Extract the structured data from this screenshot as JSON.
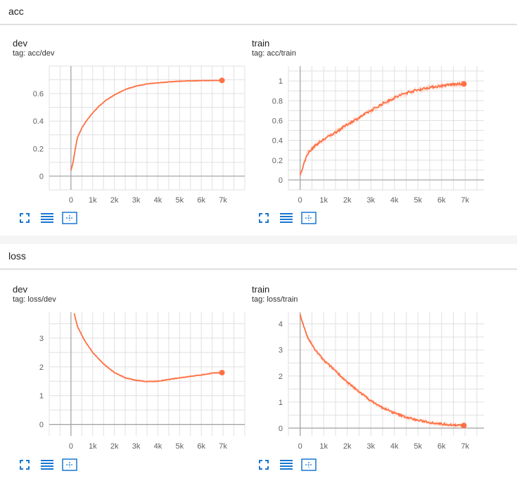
{
  "sections": [
    {
      "title": "acc"
    },
    {
      "title": "loss"
    }
  ],
  "colors": {
    "series": "#ff7043",
    "grid": "#e0e0e0",
    "axis": "#a0a0a0",
    "icon": "#1976d2"
  },
  "toolbar_icons": [
    "fullscreen-icon",
    "data-table-icon",
    "fit-domain-icon"
  ],
  "chart_data": [
    {
      "type": "line",
      "title": "dev",
      "subtitle": "tag: acc/dev",
      "xlim": [
        -1000,
        8000
      ],
      "ylim": [
        -0.1,
        0.8
      ],
      "xticks": [
        0,
        1000,
        2000,
        3000,
        4000,
        5000,
        6000,
        7000
      ],
      "xtick_labels": [
        "0",
        "1k",
        "2k",
        "3k",
        "4k",
        "5k",
        "6k",
        "7k"
      ],
      "yticks": [
        0,
        0.2,
        0.4,
        0.6
      ],
      "ytick_labels": [
        "0",
        "0.2",
        "0.4",
        "0.6"
      ],
      "noise": 0.004,
      "series": [
        {
          "x": [
            0,
            100,
            200,
            300,
            500,
            700,
            1000,
            1300,
            1600,
            2000,
            2500,
            3000,
            3500,
            4000,
            4500,
            5000,
            5500,
            6000,
            6500,
            6950
          ],
          "y": [
            0.04,
            0.1,
            0.2,
            0.28,
            0.35,
            0.4,
            0.46,
            0.51,
            0.55,
            0.59,
            0.63,
            0.655,
            0.67,
            0.678,
            0.685,
            0.69,
            0.693,
            0.694,
            0.695,
            0.696
          ]
        }
      ]
    },
    {
      "type": "line",
      "title": "train",
      "subtitle": "tag: acc/train",
      "xlim": [
        -500,
        7800
      ],
      "ylim": [
        -0.1,
        1.15
      ],
      "xticks": [
        0,
        1000,
        2000,
        3000,
        4000,
        5000,
        6000,
        7000
      ],
      "xtick_labels": [
        "0",
        "1k",
        "2k",
        "3k",
        "4k",
        "5k",
        "6k",
        "7k"
      ],
      "yticks": [
        0,
        0.2,
        0.4,
        0.6,
        0.8,
        1
      ],
      "ytick_labels": [
        "0",
        "0.2",
        "0.4",
        "0.6",
        "0.8",
        "1"
      ],
      "noise": 0.03,
      "series": [
        {
          "x": [
            0,
            300,
            600,
            1000,
            1500,
            2000,
            2500,
            3000,
            3500,
            4000,
            4500,
            5000,
            5500,
            6000,
            6500,
            6950
          ],
          "y": [
            0.05,
            0.26,
            0.34,
            0.41,
            0.48,
            0.56,
            0.63,
            0.7,
            0.77,
            0.83,
            0.88,
            0.91,
            0.935,
            0.95,
            0.965,
            0.97
          ]
        }
      ]
    },
    {
      "type": "line",
      "title": "dev",
      "subtitle": "tag: loss/dev",
      "xlim": [
        -1000,
        8000
      ],
      "ylim": [
        -0.4,
        3.9
      ],
      "xticks": [
        0,
        1000,
        2000,
        3000,
        4000,
        5000,
        6000,
        7000
      ],
      "xtick_labels": [
        "0",
        "1k",
        "2k",
        "3k",
        "4k",
        "5k",
        "6k",
        "7k"
      ],
      "yticks": [
        0,
        1,
        2,
        3
      ],
      "ytick_labels": [
        "0",
        "1",
        "2",
        "3"
      ],
      "noise": 0.025,
      "series": [
        {
          "x": [
            150,
            300,
            600,
            1000,
            1500,
            2000,
            2500,
            3000,
            3500,
            4000,
            4500,
            5000,
            5500,
            6000,
            6500,
            6950
          ],
          "y": [
            3.85,
            3.4,
            2.95,
            2.5,
            2.1,
            1.8,
            1.62,
            1.53,
            1.49,
            1.5,
            1.56,
            1.62,
            1.67,
            1.72,
            1.78,
            1.8
          ]
        }
      ]
    },
    {
      "type": "line",
      "title": "train",
      "subtitle": "tag: loss/train",
      "xlim": [
        -500,
        7800
      ],
      "ylim": [
        -0.3,
        4.45
      ],
      "xticks": [
        0,
        1000,
        2000,
        3000,
        4000,
        5000,
        6000,
        7000
      ],
      "xtick_labels": [
        "0",
        "1k",
        "2k",
        "3k",
        "4k",
        "5k",
        "6k",
        "7k"
      ],
      "yticks": [
        0,
        1,
        2,
        3,
        4
      ],
      "ytick_labels": [
        "0",
        "1",
        "2",
        "3",
        "4"
      ],
      "noise": 0.09,
      "series": [
        {
          "x": [
            0,
            300,
            600,
            1000,
            1500,
            2000,
            2500,
            3000,
            3500,
            4000,
            4500,
            5000,
            5500,
            6000,
            6500,
            6950
          ],
          "y": [
            4.35,
            3.5,
            3.05,
            2.6,
            2.2,
            1.75,
            1.4,
            1.05,
            0.78,
            0.58,
            0.42,
            0.3,
            0.22,
            0.16,
            0.12,
            0.1
          ]
        }
      ]
    }
  ]
}
